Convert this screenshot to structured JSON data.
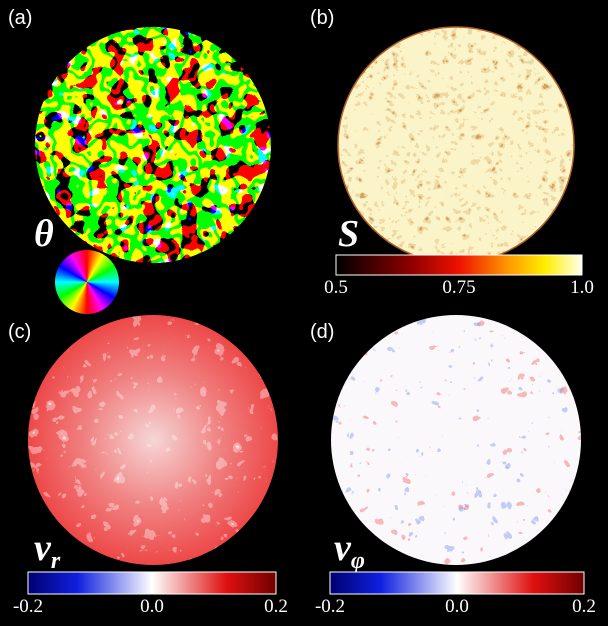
{
  "panels": [
    {
      "label": "(a)",
      "symbol": "θ"
    },
    {
      "label": "(b)",
      "symbol": "S",
      "colorbar": {
        "ticks": [
          "0.5",
          "0.75",
          "1.0"
        ]
      }
    },
    {
      "label": "(c)",
      "symbol": "v",
      "subscript": "r",
      "colorbar": {
        "ticks": [
          "-0.2",
          "0.0",
          "0.2"
        ]
      }
    },
    {
      "label": "(d)",
      "symbol": "v",
      "subscript": "φ",
      "colorbar": {
        "ticks": [
          "-0.2",
          "0.0",
          "0.2"
        ]
      }
    }
  ]
}
